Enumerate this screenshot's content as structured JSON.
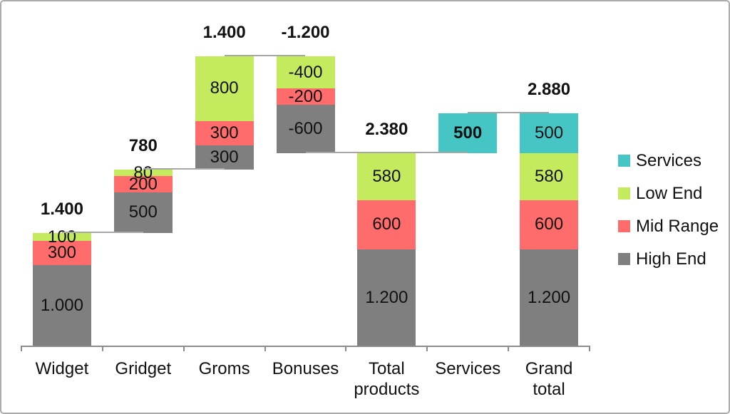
{
  "chart_data": {
    "type": "bar",
    "subtype": "stacked-waterfall",
    "title": "",
    "xlabel": "",
    "ylabel": "",
    "ylim": [
      0,
      3580
    ],
    "grid": false,
    "legend_position": "right",
    "categories": [
      "Widget",
      "Gridget",
      "Groms",
      "Bonuses",
      "Total products",
      "Services",
      "Grand total"
    ],
    "x_tick_labels": [
      "Widget",
      "Gridget",
      "Groms",
      "Bonuses",
      "Total\nproducts",
      "Services",
      "Grand\ntotal"
    ],
    "series": [
      {
        "name": "Services",
        "color": "#45C6C4",
        "values": [
          null,
          null,
          null,
          null,
          null,
          500,
          500
        ]
      },
      {
        "name": "Low End",
        "color": "#C4EA5D",
        "values": [
          100,
          80,
          800,
          -400,
          580,
          null,
          580
        ]
      },
      {
        "name": "Mid Range",
        "color": "#FF6C6B",
        "values": [
          300,
          200,
          300,
          -200,
          600,
          null,
          600
        ]
      },
      {
        "name": "High End",
        "color": "#7F7F7F",
        "values": [
          1000,
          500,
          300,
          -600,
          1200,
          null,
          1200
        ]
      }
    ],
    "series_colors": {
      "High End": "#7F7F7F",
      "Mid Range": "#FF6C6B",
      "Low End": "#C4EA5D",
      "Services": "#45C6C4"
    },
    "bars": [
      {
        "category": "Widget",
        "base": 0,
        "stack": [
          {
            "series": "High End",
            "value": 1000,
            "label": "1.000"
          },
          {
            "series": "Mid Range",
            "value": 300,
            "label": "300"
          },
          {
            "series": "Low End",
            "value": 100,
            "label": "100"
          }
        ],
        "total": 1400,
        "total_label": "1.400",
        "total_label_placement": "above"
      },
      {
        "category": "Gridget",
        "base": 1400,
        "stack": [
          {
            "series": "High End",
            "value": 500,
            "label": "500"
          },
          {
            "series": "Mid Range",
            "value": 200,
            "label": "200"
          },
          {
            "series": "Low End",
            "value": 80,
            "label": "80"
          }
        ],
        "total": 780,
        "total_label": "780",
        "total_label_placement": "above"
      },
      {
        "category": "Groms",
        "base": 2180,
        "stack": [
          {
            "series": "High End",
            "value": 300,
            "label": "300"
          },
          {
            "series": "Mid Range",
            "value": 300,
            "label": "300"
          },
          {
            "series": "Low End",
            "value": 800,
            "label": "800"
          }
        ],
        "total": 1400,
        "total_label": "1.400",
        "total_label_placement": "above"
      },
      {
        "category": "Bonuses",
        "base": 3580,
        "stack": [
          {
            "series": "Low End",
            "value": -400,
            "label": "-400"
          },
          {
            "series": "Mid Range",
            "value": -200,
            "label": "-200"
          },
          {
            "series": "High End",
            "value": -600,
            "label": "-600"
          }
        ],
        "total": -1200,
        "total_label": "-1.200",
        "total_label_placement": "above"
      },
      {
        "category": "Total products",
        "base": 0,
        "stack": [
          {
            "series": "High End",
            "value": 1200,
            "label": "1.200"
          },
          {
            "series": "Mid Range",
            "value": 600,
            "label": "600"
          },
          {
            "series": "Low End",
            "value": 580,
            "label": "580"
          }
        ],
        "total": 2380,
        "total_label": "2.380",
        "total_label_placement": "above"
      },
      {
        "category": "Services",
        "base": 2380,
        "stack": [
          {
            "series": "Services",
            "value": 500,
            "label": null
          }
        ],
        "total": 500,
        "total_label": "500",
        "total_label_placement": "inside"
      },
      {
        "category": "Grand total",
        "base": 0,
        "stack": [
          {
            "series": "High End",
            "value": 1200,
            "label": "1.200"
          },
          {
            "series": "Mid Range",
            "value": 600,
            "label": "600"
          },
          {
            "series": "Low End",
            "value": 580,
            "label": "580"
          },
          {
            "series": "Services",
            "value": 500,
            "label": "500"
          }
        ],
        "total": 2880,
        "total_label": "2.880",
        "total_label_placement": "above"
      }
    ],
    "connector_levels": [
      1400,
      2180,
      3580,
      2380,
      2380,
      2880
    ],
    "connector_color": "#A6A6A6",
    "axis_color": "#8C8C8C"
  },
  "legend": {
    "items": [
      {
        "label": "Services",
        "color": "#45C6C4"
      },
      {
        "label": "Low End",
        "color": "#C4EA5D"
      },
      {
        "label": "Mid Range",
        "color": "#FF6C6B"
      },
      {
        "label": "High End",
        "color": "#7F7F7F"
      }
    ]
  }
}
